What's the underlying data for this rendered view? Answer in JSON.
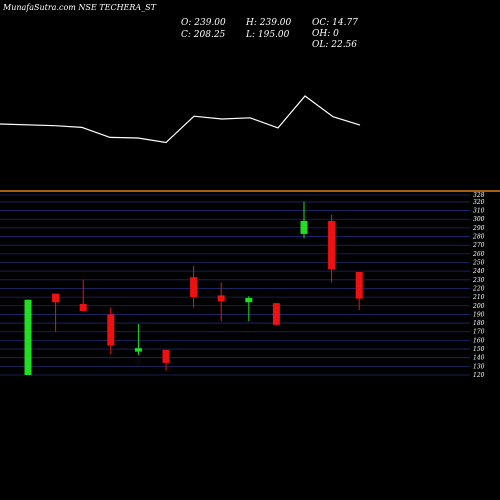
{
  "colors": {
    "background": "#000000",
    "up": "#22dd22",
    "down": "#ee1111",
    "grid": "#1e2a6e",
    "divider": "#e07b1a",
    "line": "#ffffff",
    "text": "#ffffff"
  },
  "chart_data": {
    "type": "candlestick",
    "title": "MunafaSutra.com NSE TECHERA_ST",
    "ohlc_readout": {
      "o": "O: 239.00",
      "h": "H: 239.00",
      "c": "C: 208.25",
      "l": "L: 195.00",
      "oc": "OC: 14.77",
      "oh": "OH: 0",
      "ol": "OL: 22.56"
    },
    "yticks": [
      328,
      320,
      310,
      300,
      290,
      280,
      270,
      260,
      250,
      240,
      230,
      220,
      210,
      200,
      190,
      180,
      170,
      160,
      150,
      140,
      130,
      120
    ],
    "ylim": [
      120,
      328
    ],
    "grid": true,
    "candles": [
      {
        "o": 120,
        "h": 207,
        "l": 120,
        "c": 207,
        "dir": "up"
      },
      {
        "o": 214,
        "h": 214,
        "l": 170,
        "c": 204,
        "dir": "down"
      },
      {
        "o": 202,
        "h": 230,
        "l": 196,
        "c": 194,
        "dir": "down"
      },
      {
        "o": 190,
        "h": 198,
        "l": 144,
        "c": 154,
        "dir": "down"
      },
      {
        "o": 147,
        "h": 179,
        "l": 143,
        "c": 151,
        "dir": "up"
      },
      {
        "o": 149,
        "h": 149,
        "l": 125,
        "c": 134,
        "dir": "down"
      },
      {
        "o": 233,
        "h": 246,
        "l": 198,
        "c": 210,
        "dir": "down"
      },
      {
        "o": 212,
        "h": 227,
        "l": 182,
        "c": 205,
        "dir": "down"
      },
      {
        "o": 204,
        "h": 211,
        "l": 182,
        "c": 209,
        "dir": "up"
      },
      {
        "o": 203,
        "h": 203,
        "l": 177,
        "c": 178,
        "dir": "down"
      },
      {
        "o": 283,
        "h": 320,
        "l": 278,
        "c": 298,
        "dir": "up"
      },
      {
        "o": 298,
        "h": 305,
        "l": 227,
        "c": 242,
        "dir": "down"
      },
      {
        "o": 239,
        "h": 239,
        "l": 195,
        "c": 208.25,
        "dir": "down"
      }
    ],
    "indicator_line": [
      0.5,
      0.52,
      0.53,
      0.56,
      0.74,
      0.75,
      0.83,
      0.36,
      0.41,
      0.39,
      0.57,
      0.0,
      0.37,
      0.47
    ]
  }
}
